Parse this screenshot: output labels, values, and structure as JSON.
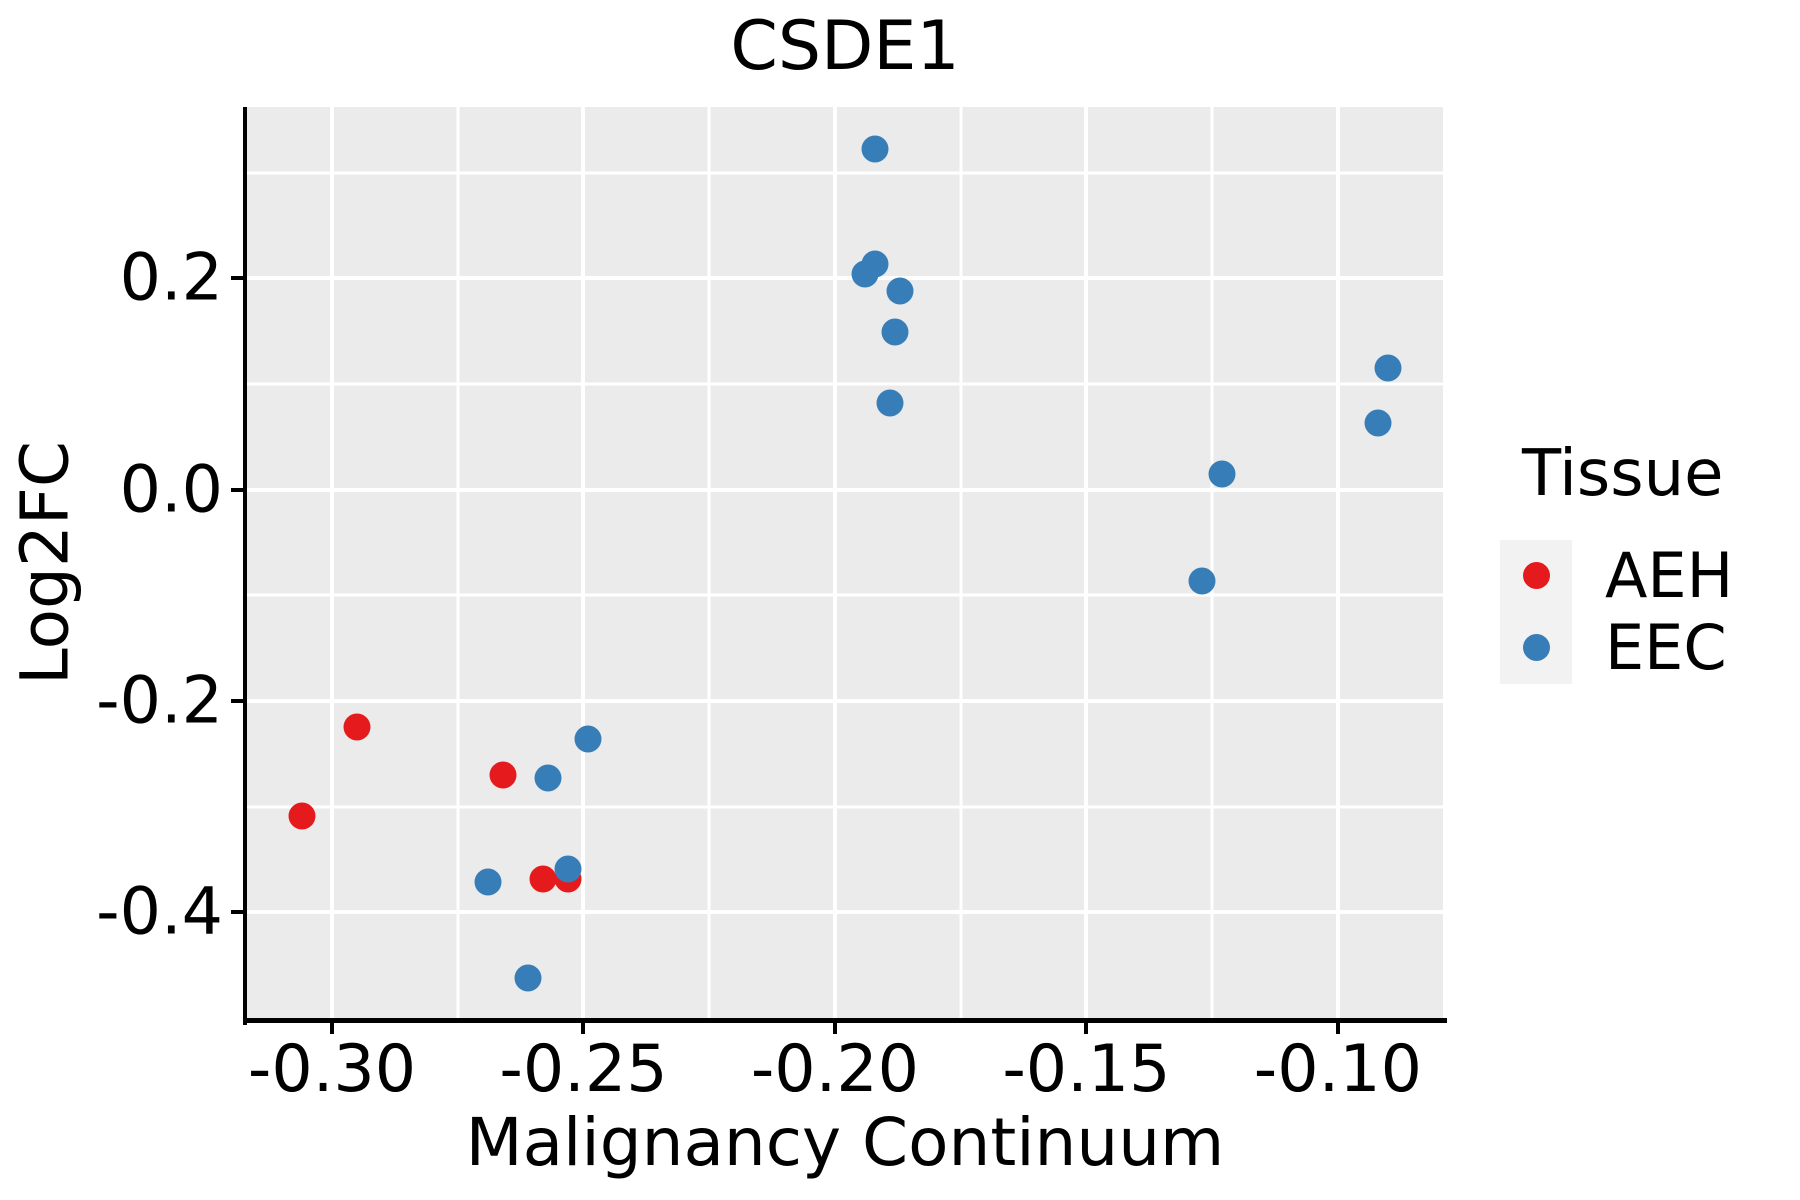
{
  "chart_data": {
    "type": "scatter",
    "title": "CSDE1",
    "xlabel": "Malignancy Continuum",
    "ylabel": "Log2FC",
    "xlim": [
      -0.3169,
      -0.0791
    ],
    "ylim": [
      -0.502,
      0.362
    ],
    "x_ticks": {
      "values": [
        -0.3,
        -0.25,
        -0.2,
        -0.15,
        -0.1
      ],
      "labels": [
        "-0.30",
        "-0.25",
        "-0.20",
        "-0.15",
        "-0.10"
      ]
    },
    "y_ticks": {
      "values": [
        0.2,
        0.0,
        -0.2,
        -0.4
      ],
      "labels": [
        "0.2",
        "0.0",
        "-0.2",
        "-0.4"
      ]
    },
    "x_minor": [
      -0.275,
      -0.225,
      -0.175,
      -0.125
    ],
    "y_minor": [
      0.3,
      0.1,
      -0.1,
      -0.3
    ],
    "grid": true,
    "panel_bg": "#ebebeb",
    "grid_color": "#ffffff",
    "axis_color": "#000000",
    "legend": {
      "title": "Tissue",
      "position": "right",
      "key_bg": "#f2f2f2",
      "entries": [
        {
          "label": "AEH",
          "color": "#e41a1c"
        },
        {
          "label": "EEC",
          "color": "#377eb8"
        }
      ]
    },
    "series": [
      {
        "name": "AEH",
        "color": "#e41a1c",
        "points": [
          [
            -0.295,
            -0.225
          ],
          [
            -0.266,
            -0.27
          ],
          [
            -0.306,
            -0.309
          ],
          [
            -0.258,
            -0.369
          ],
          [
            -0.253,
            -0.369
          ]
        ]
      },
      {
        "name": "EEC",
        "color": "#377eb8",
        "points": [
          [
            -0.192,
            0.322
          ],
          [
            -0.194,
            0.204
          ],
          [
            -0.192,
            0.213
          ],
          [
            -0.187,
            0.188
          ],
          [
            -0.188,
            0.149
          ],
          [
            -0.189,
            0.082
          ],
          [
            -0.123,
            0.015
          ],
          [
            -0.127,
            -0.087
          ],
          [
            -0.09,
            0.115
          ],
          [
            -0.092,
            0.063
          ],
          [
            -0.249,
            -0.236
          ],
          [
            -0.257,
            -0.273
          ],
          [
            -0.269,
            -0.371
          ],
          [
            -0.253,
            -0.359
          ],
          [
            -0.261,
            -0.462
          ]
        ]
      }
    ]
  }
}
